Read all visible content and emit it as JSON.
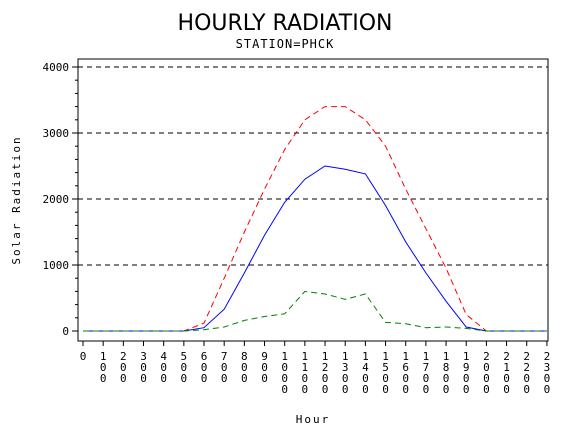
{
  "chart_data": {
    "type": "line",
    "title": "HOURLY RADIATION",
    "subtitle": "STATION=PHCK",
    "xlabel": "Hour",
    "ylabel": "Solar Radiation",
    "ylim": [
      0,
      4000
    ],
    "yticks": [
      0,
      1000,
      2000,
      3000,
      4000
    ],
    "grid": "horizontal dashed",
    "x": [
      0,
      100,
      200,
      300,
      400,
      500,
      600,
      700,
      800,
      900,
      1000,
      1100,
      1200,
      1300,
      1400,
      1500,
      1600,
      1700,
      1800,
      1900,
      2000,
      2100,
      2200,
      2300
    ],
    "xtick_labels": [
      "0",
      "100",
      "200",
      "300",
      "400",
      "500",
      "600",
      "700",
      "800",
      "900",
      "1000",
      "1100",
      "1200",
      "1300",
      "1400",
      "1500",
      "1600",
      "1700",
      "1800",
      "1900",
      "2000",
      "2100",
      "2200",
      "2300"
    ],
    "series": [
      {
        "color": "#ff0000",
        "dash": "dashed",
        "values": [
          0,
          0,
          0,
          0,
          0,
          0,
          120,
          800,
          1500,
          2150,
          2750,
          3200,
          3400,
          3400,
          3200,
          2800,
          2150,
          1550,
          950,
          250,
          0,
          0,
          0,
          0
        ]
      },
      {
        "color": "#0000ff",
        "dash": "solid",
        "values": [
          0,
          0,
          0,
          0,
          0,
          0,
          50,
          330,
          880,
          1450,
          1950,
          2300,
          2500,
          2450,
          2380,
          1900,
          1350,
          880,
          450,
          60,
          0,
          0,
          0,
          0
        ]
      },
      {
        "color": "#008000",
        "dash": "dashed",
        "values": [
          0,
          0,
          0,
          0,
          0,
          0,
          20,
          60,
          160,
          220,
          260,
          600,
          560,
          480,
          560,
          130,
          110,
          50,
          60,
          40,
          0,
          0,
          0,
          0
        ]
      }
    ]
  }
}
